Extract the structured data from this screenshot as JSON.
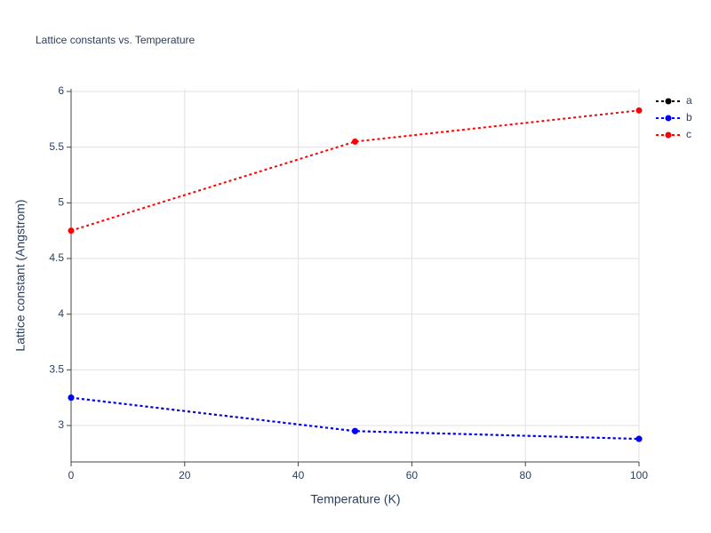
{
  "chart_data": {
    "type": "line",
    "title": "Lattice constants vs. Temperature",
    "x_label": "Temperature (K)",
    "y_label": "Lattice constant (Angstrom)",
    "x": [
      0,
      50,
      100
    ],
    "series": [
      {
        "name": "a",
        "color": "#000000",
        "values": [
          3.25,
          2.95,
          2.88
        ]
      },
      {
        "name": "b",
        "color": "#0000ff",
        "values": [
          3.25,
          2.95,
          2.88
        ]
      },
      {
        "name": "c",
        "color": "#ff0000",
        "values": [
          4.75,
          5.55,
          5.83
        ]
      }
    ],
    "xlim": [
      0,
      100
    ],
    "xticks": [
      0,
      20,
      40,
      60,
      80,
      100
    ],
    "ylim": [
      2.673,
      6.024
    ],
    "yticks": [
      3,
      3.5,
      4,
      4.5,
      5,
      5.5,
      6
    ],
    "grid": true,
    "legend": "right"
  }
}
